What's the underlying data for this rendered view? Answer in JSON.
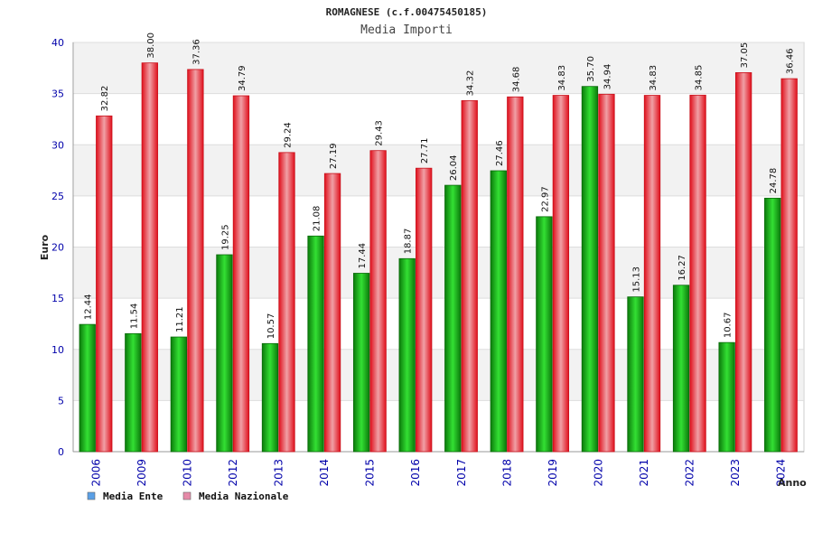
{
  "chart_data": {
    "type": "bar",
    "title": "ROMAGNESE (c.f.00475450185)",
    "subtitle": "Media Importi",
    "xlabel": "Anno",
    "ylabel": "Euro",
    "ylim": [
      0,
      40
    ],
    "yticks": [
      0,
      5,
      10,
      15,
      20,
      25,
      30,
      35,
      40
    ],
    "categories": [
      "2006",
      "2009",
      "2010",
      "2012",
      "2013",
      "2014",
      "2015",
      "2016",
      "2017",
      "2018",
      "2019",
      "2020",
      "2021",
      "2022",
      "2023",
      "2024"
    ],
    "series": [
      {
        "name": "Media Ente",
        "color": "#0a9a0a",
        "legend_color": "#5aa0e6",
        "values": [
          12.44,
          11.54,
          11.21,
          19.25,
          10.57,
          21.08,
          17.44,
          18.87,
          26.04,
          27.46,
          22.97,
          35.7,
          15.13,
          16.27,
          10.67,
          24.78
        ]
      },
      {
        "name": "Media Nazionale",
        "color": "#e8202a",
        "legend_color": "#e68aa8",
        "values": [
          32.82,
          38.0,
          37.36,
          34.79,
          29.24,
          27.19,
          29.43,
          27.71,
          34.32,
          34.68,
          34.83,
          34.94,
          34.83,
          34.85,
          37.05,
          36.46
        ]
      }
    ],
    "grid": true,
    "legend": "bottom-left"
  }
}
